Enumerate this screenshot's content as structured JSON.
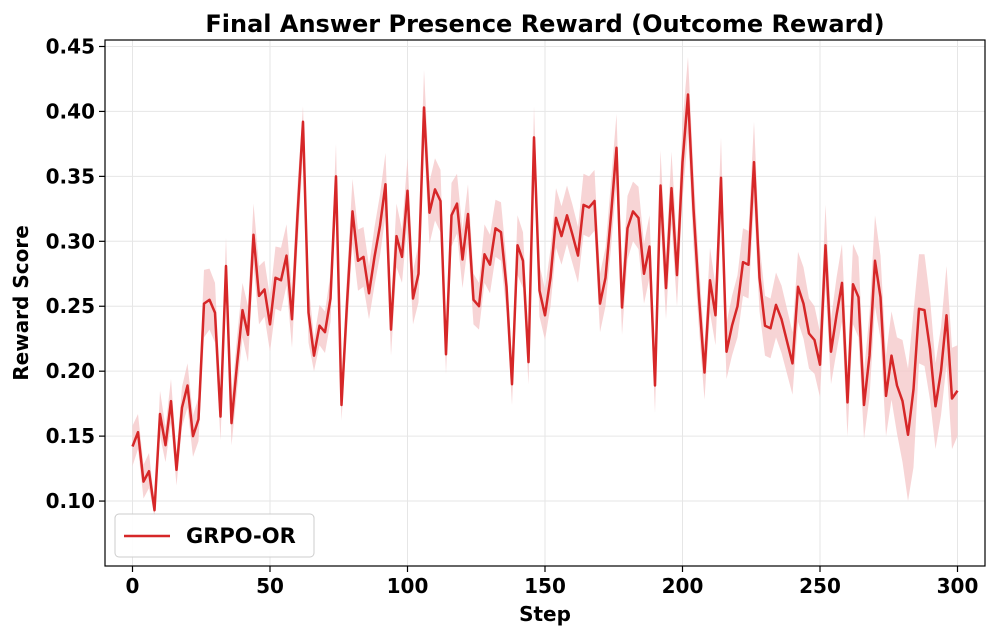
{
  "chart_data": {
    "type": "line",
    "title": "Final Answer Presence Reward (Outcome Reward)",
    "xlabel": "Step",
    "ylabel": "Reward Score",
    "xlim": [
      -10,
      310
    ],
    "ylim": [
      0.05,
      0.455
    ],
    "xticks": [
      0,
      50,
      100,
      150,
      200,
      250,
      300
    ],
    "yticks": [
      0.1,
      0.15,
      0.2,
      0.25,
      0.3,
      0.35,
      0.4,
      0.45
    ],
    "ytick_labels": [
      "0.10",
      "0.15",
      "0.20",
      "0.25",
      "0.30",
      "0.35",
      "0.40",
      "0.45"
    ],
    "grid": true,
    "legend_position": "lower-left",
    "series": [
      {
        "name": "GRPO-OR",
        "color": "#d62728",
        "band_color": "#f4c6c7",
        "x": [
          0,
          2,
          4,
          6,
          8,
          10,
          12,
          14,
          16,
          18,
          20,
          22,
          24,
          26,
          28,
          30,
          32,
          34,
          36,
          38,
          40,
          42,
          44,
          46,
          48,
          50,
          52,
          54,
          56,
          58,
          60,
          62,
          64,
          66,
          68,
          70,
          72,
          74,
          76,
          78,
          80,
          82,
          84,
          86,
          88,
          90,
          92,
          94,
          96,
          98,
          100,
          102,
          104,
          106,
          108,
          110,
          112,
          114,
          116,
          118,
          120,
          122,
          124,
          126,
          128,
          130,
          132,
          134,
          136,
          138,
          140,
          142,
          144,
          146,
          148,
          150,
          152,
          154,
          156,
          158,
          160,
          162,
          164,
          166,
          168,
          170,
          172,
          174,
          176,
          178,
          180,
          182,
          184,
          186,
          188,
          190,
          192,
          194,
          196,
          198,
          200,
          202,
          204,
          206,
          208,
          210,
          212,
          214,
          216,
          218,
          220,
          222,
          224,
          226,
          228,
          230,
          232,
          234,
          236,
          238,
          240,
          242,
          244,
          246,
          248,
          250,
          252,
          254,
          256,
          258,
          260,
          262,
          264,
          266,
          268,
          270,
          272,
          274,
          276,
          278,
          280,
          282,
          284,
          286,
          288,
          290,
          292,
          294,
          296,
          298,
          300
        ],
        "y": [
          0.142,
          0.153,
          0.115,
          0.123,
          0.093,
          0.167,
          0.143,
          0.177,
          0.124,
          0.172,
          0.189,
          0.15,
          0.163,
          0.252,
          0.255,
          0.245,
          0.165,
          0.281,
          0.16,
          0.205,
          0.247,
          0.228,
          0.305,
          0.258,
          0.263,
          0.236,
          0.272,
          0.27,
          0.289,
          0.24,
          0.32,
          0.392,
          0.245,
          0.212,
          0.235,
          0.23,
          0.256,
          0.35,
          0.174,
          0.252,
          0.323,
          0.285,
          0.288,
          0.26,
          0.288,
          0.312,
          0.344,
          0.232,
          0.304,
          0.288,
          0.339,
          0.256,
          0.275,
          0.403,
          0.322,
          0.34,
          0.331,
          0.213,
          0.32,
          0.329,
          0.286,
          0.321,
          0.255,
          0.25,
          0.29,
          0.282,
          0.31,
          0.307,
          0.265,
          0.19,
          0.297,
          0.285,
          0.207,
          0.38,
          0.262,
          0.243,
          0.272,
          0.318,
          0.304,
          0.32,
          0.305,
          0.289,
          0.328,
          0.326,
          0.331,
          0.252,
          0.272,
          0.32,
          0.372,
          0.249,
          0.31,
          0.323,
          0.318,
          0.275,
          0.296,
          0.189,
          0.343,
          0.264,
          0.341,
          0.274,
          0.361,
          0.413,
          0.325,
          0.257,
          0.199,
          0.27,
          0.243,
          0.349,
          0.215,
          0.235,
          0.25,
          0.284,
          0.282,
          0.361,
          0.272,
          0.235,
          0.233,
          0.251,
          0.24,
          0.223,
          0.206,
          0.265,
          0.252,
          0.229,
          0.224,
          0.205,
          0.297,
          0.215,
          0.243,
          0.268,
          0.176,
          0.267,
          0.257,
          0.174,
          0.212,
          0.285,
          0.257,
          0.181,
          0.212,
          0.189,
          0.177,
          0.151,
          0.186,
          0.248,
          0.247,
          0.217,
          0.173,
          0.2,
          0.243,
          0.179,
          0.185
        ],
        "lower": [
          0.127,
          0.14,
          0.102,
          0.11,
          0.088,
          0.15,
          0.13,
          0.16,
          0.112,
          0.157,
          0.172,
          0.134,
          0.146,
          0.226,
          0.232,
          0.222,
          0.147,
          0.26,
          0.143,
          0.185,
          0.226,
          0.207,
          0.282,
          0.236,
          0.242,
          0.215,
          0.248,
          0.246,
          0.266,
          0.218,
          0.296,
          0.366,
          0.222,
          0.2,
          0.22,
          0.214,
          0.238,
          0.325,
          0.162,
          0.23,
          0.298,
          0.262,
          0.265,
          0.24,
          0.266,
          0.289,
          0.32,
          0.212,
          0.28,
          0.268,
          0.315,
          0.236,
          0.253,
          0.376,
          0.298,
          0.316,
          0.307,
          0.198,
          0.296,
          0.306,
          0.264,
          0.298,
          0.236,
          0.232,
          0.268,
          0.26,
          0.288,
          0.285,
          0.245,
          0.174,
          0.274,
          0.264,
          0.19,
          0.356,
          0.242,
          0.224,
          0.25,
          0.295,
          0.282,
          0.298,
          0.283,
          0.268,
          0.305,
          0.303,
          0.308,
          0.23,
          0.25,
          0.295,
          0.345,
          0.228,
          0.286,
          0.3,
          0.294,
          0.252,
          0.272,
          0.168,
          0.316,
          0.24,
          0.313,
          0.25,
          0.332,
          0.383,
          0.296,
          0.232,
          0.178,
          0.245,
          0.22,
          0.318,
          0.194,
          0.212,
          0.226,
          0.258,
          0.256,
          0.33,
          0.246,
          0.212,
          0.21,
          0.226,
          0.214,
          0.198,
          0.182,
          0.238,
          0.225,
          0.202,
          0.198,
          0.18,
          0.266,
          0.19,
          0.215,
          0.238,
          0.15,
          0.236,
          0.226,
          0.148,
          0.18,
          0.25,
          0.225,
          0.15,
          0.178,
          0.152,
          0.13,
          0.1,
          0.126,
          0.206,
          0.204,
          0.178,
          0.14,
          0.166,
          0.205,
          0.14,
          0.15
        ],
        "upper": [
          0.158,
          0.167,
          0.128,
          0.137,
          0.099,
          0.185,
          0.157,
          0.194,
          0.137,
          0.188,
          0.206,
          0.166,
          0.18,
          0.278,
          0.279,
          0.268,
          0.184,
          0.303,
          0.178,
          0.226,
          0.268,
          0.25,
          0.329,
          0.281,
          0.285,
          0.257,
          0.296,
          0.295,
          0.313,
          0.262,
          0.344,
          0.404,
          0.268,
          0.225,
          0.251,
          0.246,
          0.275,
          0.375,
          0.187,
          0.274,
          0.348,
          0.309,
          0.311,
          0.281,
          0.311,
          0.336,
          0.368,
          0.252,
          0.329,
          0.309,
          0.364,
          0.277,
          0.298,
          0.432,
          0.346,
          0.364,
          0.355,
          0.229,
          0.345,
          0.352,
          0.309,
          0.344,
          0.275,
          0.268,
          0.313,
          0.305,
          0.332,
          0.33,
          0.285,
          0.207,
          0.32,
          0.307,
          0.225,
          0.404,
          0.282,
          0.263,
          0.294,
          0.341,
          0.327,
          0.343,
          0.328,
          0.311,
          0.352,
          0.35,
          0.355,
          0.275,
          0.295,
          0.346,
          0.398,
          0.271,
          0.335,
          0.346,
          0.342,
          0.298,
          0.32,
          0.21,
          0.37,
          0.288,
          0.369,
          0.298,
          0.391,
          0.442,
          0.354,
          0.282,
          0.22,
          0.295,
          0.266,
          0.38,
          0.237,
          0.258,
          0.274,
          0.31,
          0.308,
          0.392,
          0.298,
          0.258,
          0.256,
          0.276,
          0.266,
          0.248,
          0.23,
          0.292,
          0.28,
          0.256,
          0.25,
          0.23,
          0.328,
          0.24,
          0.272,
          0.298,
          0.202,
          0.298,
          0.288,
          0.2,
          0.244,
          0.32,
          0.289,
          0.212,
          0.246,
          0.226,
          0.224,
          0.202,
          0.246,
          0.29,
          0.29,
          0.256,
          0.206,
          0.234,
          0.281,
          0.218,
          0.22
        ]
      }
    ]
  }
}
